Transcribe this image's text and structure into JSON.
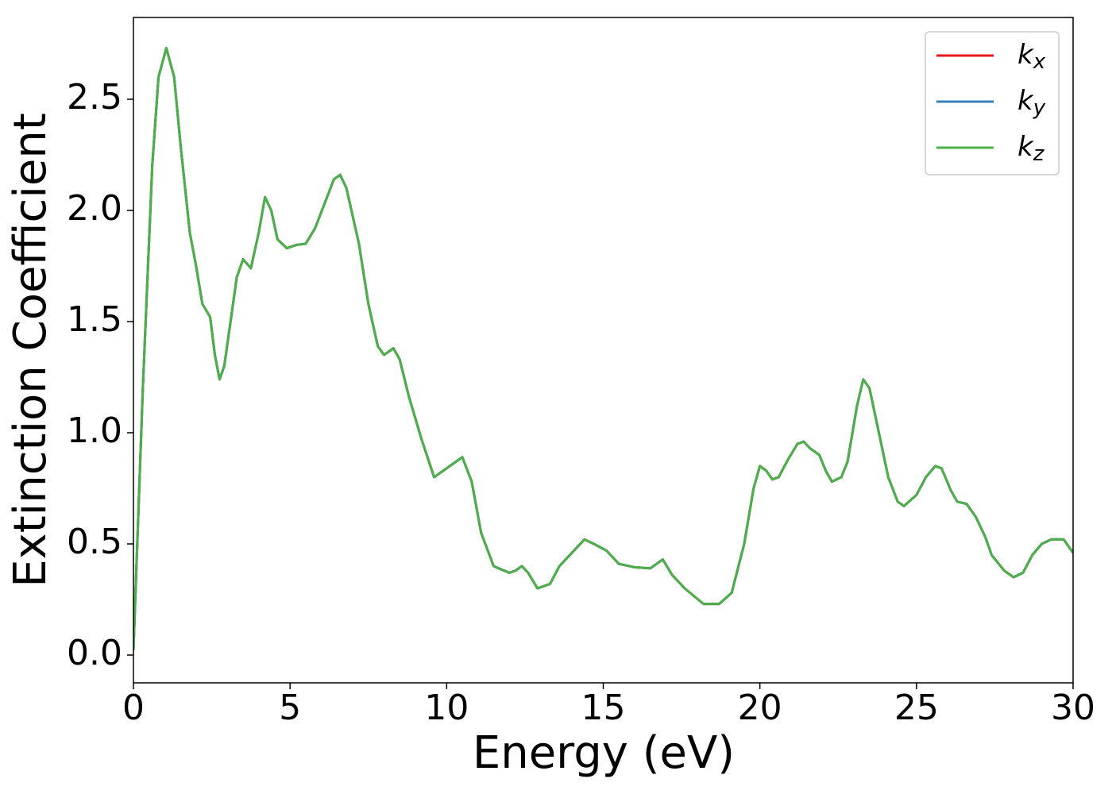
{
  "chart_data": {
    "type": "line",
    "xlabel": "Energy (eV)",
    "ylabel": "Extinction Coefficient",
    "x": [
      0,
      0.3,
      0.6,
      0.8,
      1.05,
      1.3,
      1.5,
      1.8,
      2.0,
      2.2,
      2.45,
      2.6,
      2.75,
      2.9,
      3.1,
      3.3,
      3.5,
      3.75,
      4.0,
      4.2,
      4.4,
      4.6,
      4.9,
      5.2,
      5.5,
      5.8,
      6.1,
      6.4,
      6.6,
      6.8,
      7.2,
      7.5,
      7.8,
      8.0,
      8.3,
      8.5,
      8.8,
      9.2,
      9.6,
      10.0,
      10.3,
      10.5,
      10.8,
      11.1,
      11.5,
      12.0,
      12.2,
      12.4,
      12.6,
      12.9,
      13.3,
      13.6,
      14.0,
      14.4,
      14.7,
      15.1,
      15.5,
      16.0,
      16.5,
      16.9,
      17.2,
      17.6,
      18.2,
      18.7,
      19.1,
      19.5,
      19.8,
      20.0,
      20.2,
      20.4,
      20.6,
      20.9,
      21.2,
      21.4,
      21.6,
      21.9,
      22.1,
      22.3,
      22.6,
      22.8,
      23.1,
      23.3,
      23.5,
      23.8,
      24.1,
      24.4,
      24.6,
      25.0,
      25.3,
      25.6,
      25.8,
      26.1,
      26.3,
      26.6,
      26.9,
      27.2,
      27.4,
      27.8,
      28.1,
      28.4,
      28.7,
      29.0,
      29.3,
      29.7,
      30.0
    ],
    "series": [
      {
        "name": "kx",
        "color": "#e41a1c",
        "values": [
          0.02,
          1.2,
          2.2,
          2.6,
          2.73,
          2.6,
          2.3,
          1.9,
          1.75,
          1.58,
          1.52,
          1.35,
          1.24,
          1.3,
          1.5,
          1.7,
          1.78,
          1.74,
          1.9,
          2.06,
          2.0,
          1.87,
          1.83,
          1.845,
          1.85,
          1.92,
          2.03,
          2.14,
          2.16,
          2.1,
          1.85,
          1.58,
          1.39,
          1.35,
          1.38,
          1.33,
          1.16,
          0.97,
          0.8,
          0.84,
          0.87,
          0.89,
          0.78,
          0.55,
          0.4,
          0.37,
          0.38,
          0.4,
          0.37,
          0.3,
          0.32,
          0.4,
          0.46,
          0.52,
          0.5,
          0.47,
          0.41,
          0.395,
          0.39,
          0.43,
          0.36,
          0.3,
          0.23,
          0.23,
          0.28,
          0.5,
          0.75,
          0.85,
          0.83,
          0.79,
          0.8,
          0.88,
          0.95,
          0.96,
          0.93,
          0.9,
          0.83,
          0.78,
          0.8,
          0.87,
          1.12,
          1.24,
          1.2,
          1.0,
          0.8,
          0.69,
          0.67,
          0.72,
          0.8,
          0.85,
          0.84,
          0.74,
          0.69,
          0.68,
          0.62,
          0.53,
          0.45,
          0.38,
          0.35,
          0.37,
          0.45,
          0.5,
          0.52,
          0.52,
          0.46
        ]
      },
      {
        "name": "ky",
        "color": "#377eb8",
        "values": [
          0.02,
          1.2,
          2.2,
          2.6,
          2.73,
          2.6,
          2.3,
          1.9,
          1.75,
          1.58,
          1.52,
          1.35,
          1.24,
          1.3,
          1.5,
          1.7,
          1.78,
          1.74,
          1.9,
          2.06,
          2.0,
          1.87,
          1.83,
          1.845,
          1.85,
          1.92,
          2.03,
          2.14,
          2.16,
          2.1,
          1.85,
          1.58,
          1.39,
          1.35,
          1.38,
          1.33,
          1.16,
          0.97,
          0.8,
          0.84,
          0.87,
          0.89,
          0.78,
          0.55,
          0.4,
          0.37,
          0.38,
          0.4,
          0.37,
          0.3,
          0.32,
          0.4,
          0.46,
          0.52,
          0.5,
          0.47,
          0.41,
          0.395,
          0.39,
          0.43,
          0.36,
          0.3,
          0.23,
          0.23,
          0.28,
          0.5,
          0.75,
          0.85,
          0.83,
          0.79,
          0.8,
          0.88,
          0.95,
          0.96,
          0.93,
          0.9,
          0.83,
          0.78,
          0.8,
          0.87,
          1.12,
          1.24,
          1.2,
          1.0,
          0.8,
          0.69,
          0.67,
          0.72,
          0.8,
          0.85,
          0.84,
          0.74,
          0.69,
          0.68,
          0.62,
          0.53,
          0.45,
          0.38,
          0.35,
          0.37,
          0.45,
          0.5,
          0.52,
          0.52,
          0.46
        ]
      },
      {
        "name": "kz",
        "color": "#4daf4a",
        "values": [
          0.02,
          1.2,
          2.2,
          2.6,
          2.73,
          2.6,
          2.3,
          1.9,
          1.75,
          1.58,
          1.52,
          1.35,
          1.24,
          1.3,
          1.5,
          1.7,
          1.78,
          1.74,
          1.9,
          2.06,
          2.0,
          1.87,
          1.83,
          1.845,
          1.85,
          1.92,
          2.03,
          2.14,
          2.16,
          2.1,
          1.85,
          1.58,
          1.39,
          1.35,
          1.38,
          1.33,
          1.16,
          0.97,
          0.8,
          0.84,
          0.87,
          0.89,
          0.78,
          0.55,
          0.4,
          0.37,
          0.38,
          0.4,
          0.37,
          0.3,
          0.32,
          0.4,
          0.46,
          0.52,
          0.5,
          0.47,
          0.41,
          0.395,
          0.39,
          0.43,
          0.36,
          0.3,
          0.23,
          0.23,
          0.28,
          0.5,
          0.75,
          0.85,
          0.83,
          0.79,
          0.8,
          0.88,
          0.95,
          0.96,
          0.93,
          0.9,
          0.83,
          0.78,
          0.8,
          0.87,
          1.12,
          1.24,
          1.2,
          1.0,
          0.8,
          0.69,
          0.67,
          0.72,
          0.8,
          0.85,
          0.84,
          0.74,
          0.69,
          0.68,
          0.62,
          0.53,
          0.45,
          0.38,
          0.35,
          0.37,
          0.45,
          0.5,
          0.52,
          0.52,
          0.46
        ]
      }
    ],
    "xlim": [
      0,
      30
    ],
    "xticks": [
      0,
      5,
      10,
      15,
      20,
      25,
      30
    ],
    "ylim": [
      -0.125,
      2.868
    ],
    "yticks": [
      {
        "value": 0,
        "label": "0.0"
      },
      0.5,
      {
        "value": 1,
        "label": "1.0"
      },
      1.5,
      {
        "value": 2,
        "label": "2.0"
      },
      2.5
    ],
    "grid": false,
    "legend": "upper right"
  }
}
